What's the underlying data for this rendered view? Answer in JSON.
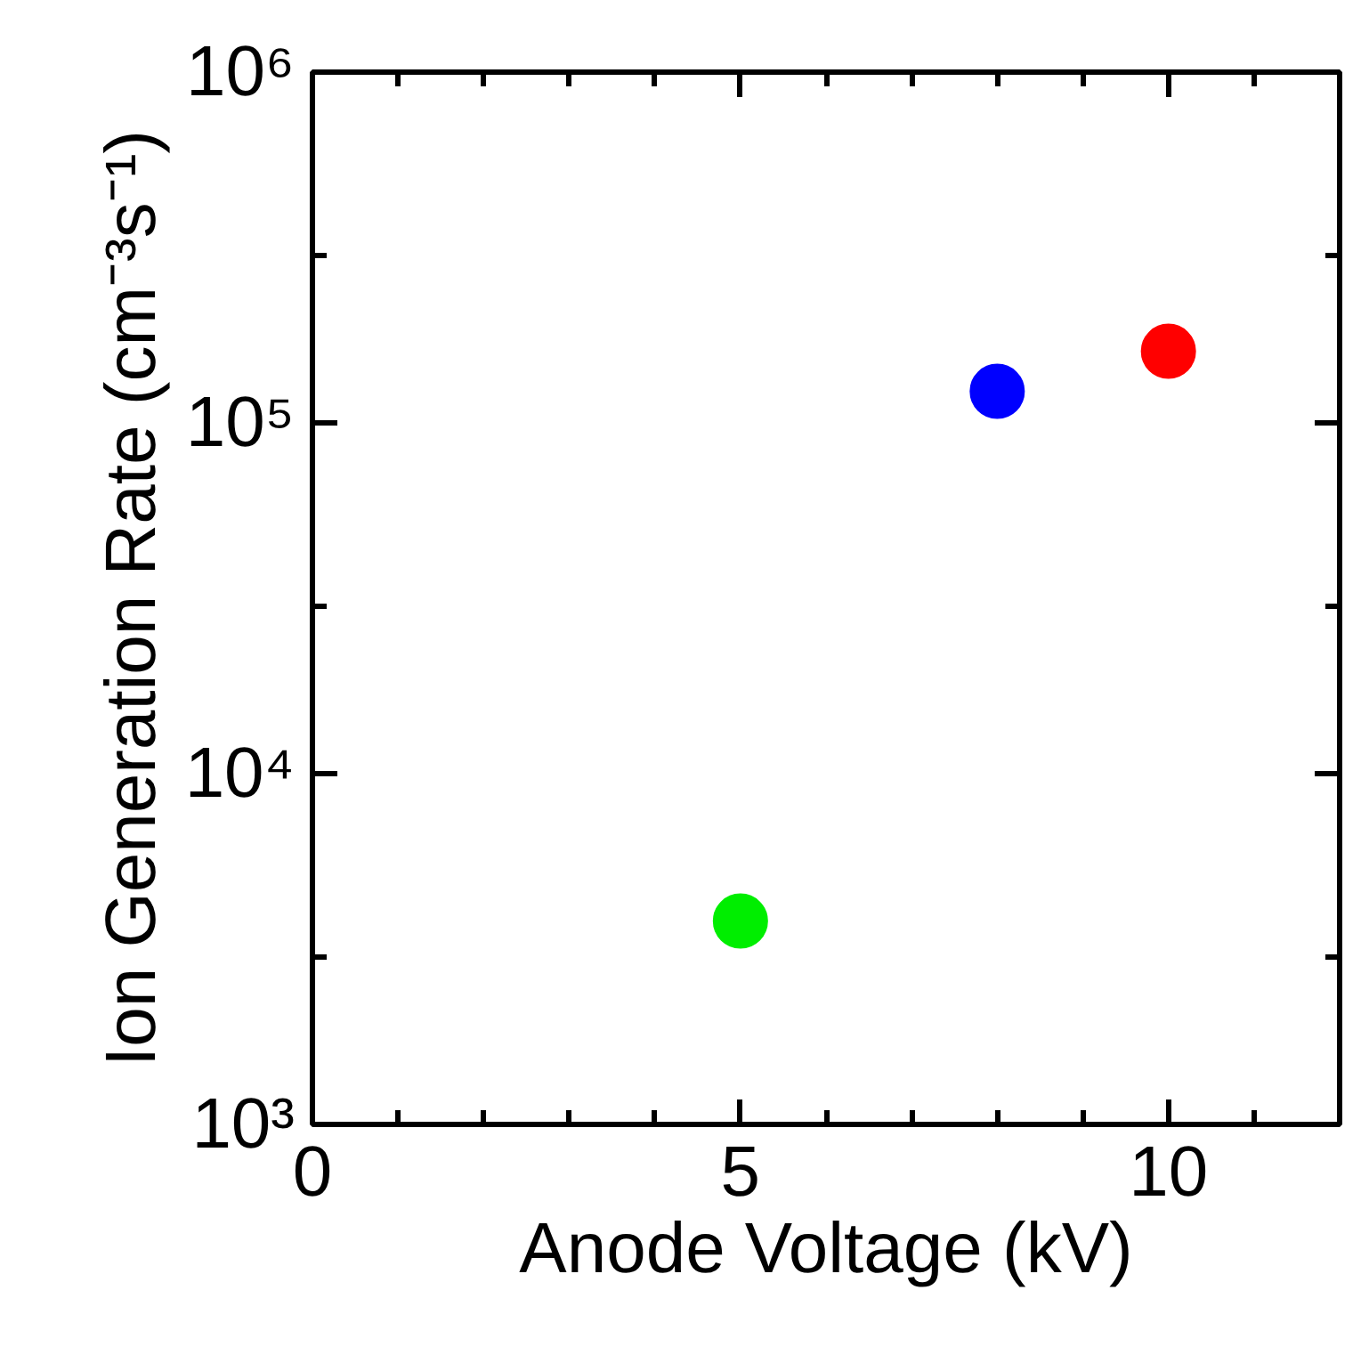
{
  "chart_data": {
    "type": "scatter",
    "xlabel": "Anode Voltage (kV)",
    "ylabel": "Ion Generation Rate (cm⁻³s⁻¹)",
    "x": [
      5,
      8,
      10
    ],
    "values": [
      3800,
      123000,
      160000
    ],
    "colors": [
      "#00ee00",
      "#0000ff",
      "#ff0000"
    ],
    "marker": "circle",
    "log": "y",
    "grid": false,
    "xlim": [
      0,
      12
    ],
    "xticks": [
      0,
      {
        "value": 1,
        "label": null
      },
      {
        "value": 2,
        "label": null
      },
      {
        "value": 3,
        "label": null
      },
      {
        "value": 4,
        "label": null
      },
      5,
      {
        "value": 6,
        "label": null
      },
      {
        "value": 7,
        "label": null
      },
      {
        "value": 8,
        "label": null
      },
      {
        "value": 9,
        "label": null
      },
      10,
      {
        "value": 11,
        "label": null
      },
      {
        "value": 12,
        "label": null
      }
    ],
    "ylim": [
      1000,
      1000000
    ],
    "yticks": [
      {
        "value": 1000,
        "label": "10³"
      },
      {
        "value": 3000,
        "label": null
      },
      {
        "value": 10000,
        "label": "10⁴"
      },
      {
        "value": 30000,
        "label": null
      },
      {
        "value": 100000,
        "label": "10⁵"
      },
      {
        "value": 300000,
        "label": null
      },
      {
        "value": 1000000,
        "label": "10⁶"
      }
    ]
  }
}
